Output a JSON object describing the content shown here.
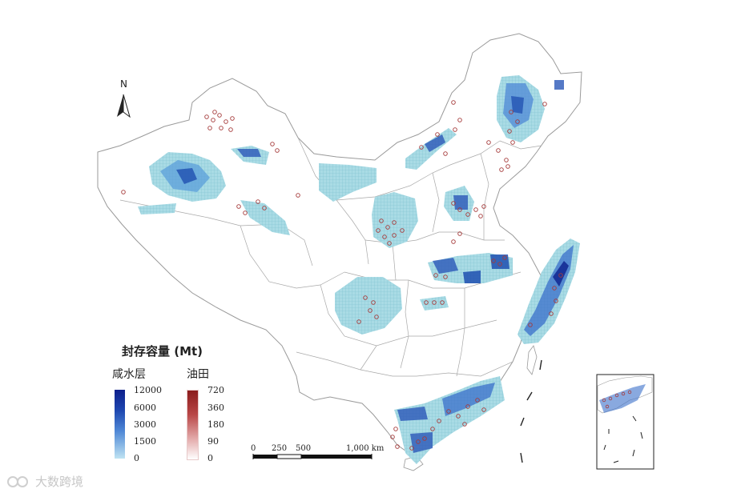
{
  "legend": {
    "title": "封存容量 (Mt)",
    "saline": {
      "label": "咸水层",
      "ticks": [
        "12000",
        "6000",
        "3000",
        "1500",
        "0"
      ]
    },
    "oil": {
      "label": "油田",
      "ticks": [
        "720",
        "360",
        "180",
        "90",
        "0"
      ]
    }
  },
  "scalebar": {
    "labels": [
      "0",
      "250",
      "500",
      "1,000 km"
    ]
  },
  "north": "N",
  "watermark": "大数跨境",
  "colors": {
    "saline_high": "#0d1f8c",
    "saline_low": "#bfe3f2",
    "oil_high": "#8b1c1c",
    "oil_low": "#ffffff",
    "boundary": "#9a9a9a"
  }
}
